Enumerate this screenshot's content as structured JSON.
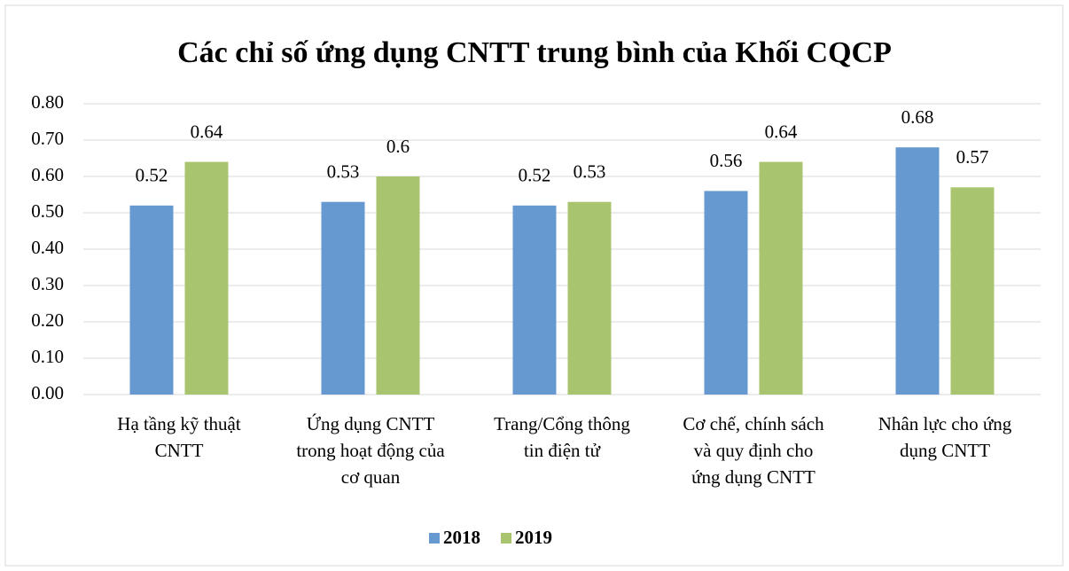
{
  "chart_data": {
    "type": "bar",
    "title": "Các chỉ số ứng dụng CNTT trung bình của Khối CQCP",
    "categories": [
      [
        "Hạ tầng kỹ thuật",
        "CNTT"
      ],
      [
        "Ứng dụng CNTT",
        "trong hoạt động của",
        "cơ quan"
      ],
      [
        "Trang/Cổng thông",
        "tin điện tử"
      ],
      [
        "Cơ chế, chính sách",
        "và quy định cho",
        "ứng dụng CNTT"
      ],
      [
        "Nhân lực cho ứng",
        "dụng CNTT"
      ]
    ],
    "series": [
      {
        "name": "2018",
        "color": "#6699cf",
        "values": [
          0.52,
          0.53,
          0.52,
          0.56,
          0.68
        ]
      },
      {
        "name": "2019",
        "color": "#a9c46e",
        "values": [
          0.64,
          0.6,
          0.53,
          0.64,
          0.57
        ]
      }
    ],
    "ylim": [
      0,
      0.8
    ],
    "yticks": [
      {
        "value": 0,
        "label": "0.00"
      },
      {
        "value": 0.1,
        "label": "0.10"
      },
      {
        "value": 0.2,
        "label": "0.20"
      },
      {
        "value": 0.3,
        "label": "0.30"
      },
      {
        "value": 0.4,
        "label": "0.40"
      },
      {
        "value": 0.5,
        "label": "0.50"
      },
      {
        "value": 0.6,
        "label": "0.60"
      },
      {
        "value": 0.7,
        "label": "0.70"
      },
      {
        "value": 0.8,
        "label": "0.80"
      }
    ],
    "grid": true,
    "legend": "bottom"
  }
}
